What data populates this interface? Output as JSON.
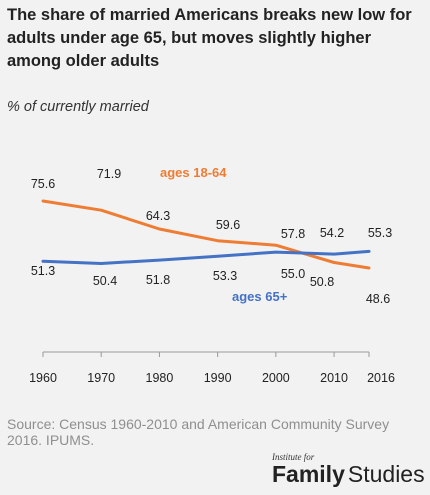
{
  "title": "The share of married Americans breaks new low for adults under age 65, but moves slightly higher among older adults",
  "subtitle": "% of currently married",
  "source": "Source: Census 1960-2010 and American Community Survey 2016. IPUMS.",
  "logo": {
    "top_text": "Institute for",
    "word1": "Family",
    "word2": "Studies"
  },
  "chart_data": {
    "type": "line",
    "x": [
      1960,
      1970,
      1980,
      1990,
      2000,
      2010,
      2016
    ],
    "x_tick_labels": [
      "1960",
      "1970",
      "1980",
      "1990",
      "2000",
      "2010",
      "2016"
    ],
    "ylim": [
      0,
      100
    ],
    "grid": false,
    "series": [
      {
        "name": "ages 18-64",
        "color": "#ee7c33",
        "values": [
          75.6,
          71.9,
          64.3,
          59.6,
          57.8,
          50.8,
          48.6
        ],
        "labels": [
          "75.6",
          "71.9",
          "64.3",
          "59.6",
          "57.8",
          "50.8",
          "48.6"
        ]
      },
      {
        "name": "ages 65+",
        "color": "#4472c4",
        "values": [
          51.3,
          50.4,
          51.8,
          53.3,
          55.0,
          54.2,
          55.3
        ],
        "labels": [
          "51.3",
          "50.4",
          "51.8",
          "53.3",
          "55.0",
          "54.2",
          "55.3"
        ]
      }
    ]
  }
}
